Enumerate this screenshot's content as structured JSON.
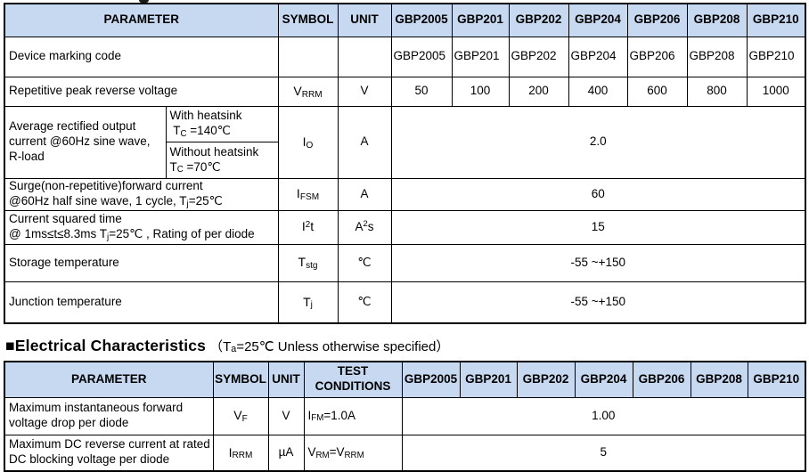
{
  "colors": {
    "header_bg": "#c6d9f1",
    "border": "#000000",
    "text": "#000000"
  },
  "ratings_table": {
    "header": {
      "parameter": "PARAMETER",
      "symbol": "SYMBOL",
      "unit": "UNIT",
      "models": [
        "GBP2005",
        "GBP201",
        "GBP202",
        "GBP204",
        "GBP206",
        "GBP208",
        "GBP210"
      ]
    },
    "device_marking": {
      "label": "Device marking code",
      "values": [
        "GBP2005",
        "GBP201",
        "GBP202",
        "GBP204",
        "GBP206",
        "GBP208",
        "GBP210"
      ]
    },
    "vrrm": {
      "label": "Repetitive peak reverse voltage",
      "symbol": [
        {
          "t": "V"
        },
        {
          "t": "RRM",
          "s": "sub"
        }
      ],
      "unit": "V",
      "values": [
        "50",
        "100",
        "200",
        "400",
        "600",
        "800",
        "1000"
      ]
    },
    "io": {
      "label": "Average rectified output current @60Hz sine wave, R-load",
      "cond_top": [
        {
          "t": "With heatsink\n "
        },
        {
          "t": "T"
        },
        {
          "t": "C",
          "s": "sub"
        },
        {
          "t": " =140℃"
        }
      ],
      "cond_bottom": [
        {
          "t": "Without heatsink\n"
        },
        {
          "t": "T"
        },
        {
          "t": "C",
          "s": "sub"
        },
        {
          "t": " =70℃"
        }
      ],
      "symbol": [
        {
          "t": "I"
        },
        {
          "t": "O",
          "s": "sub"
        }
      ],
      "unit": "A",
      "value": "2.0"
    },
    "ifsm": {
      "label": [
        {
          "t": "Surge(non-repetitive)forward current\n@60Hz half sine wave, 1 cycle, T"
        },
        {
          "t": "j",
          "s": "sub"
        },
        {
          "t": "=25℃"
        }
      ],
      "symbol": [
        {
          "t": "I"
        },
        {
          "t": "FSM",
          "s": "sub"
        }
      ],
      "unit": "A",
      "value": "60"
    },
    "i2t": {
      "label": [
        {
          "t": "Current squared time\n@ 1ms≤t≤8.3ms T"
        },
        {
          "t": "j",
          "s": "sub"
        },
        {
          "t": "=25℃ , Rating of per diode"
        }
      ],
      "symbol": [
        {
          "t": "I"
        },
        {
          "t": "2",
          "s": "sup"
        },
        {
          "t": "t"
        }
      ],
      "unit": [
        {
          "t": "A"
        },
        {
          "t": "2",
          "s": "sup"
        },
        {
          "t": "s"
        }
      ],
      "value": "15"
    },
    "tstg": {
      "label": "Storage temperature",
      "symbol": [
        {
          "t": "T"
        },
        {
          "t": "stg",
          "s": "sub"
        }
      ],
      "unit": "℃",
      "value": "-55 ~+150"
    },
    "tj": {
      "label": "Junction temperature",
      "symbol": [
        {
          "t": "T"
        },
        {
          "t": "j",
          "s": "sub"
        }
      ],
      "unit": "℃",
      "value": "-55 ~+150"
    }
  },
  "ec_heading": {
    "title": "■Electrical Characteristics",
    "condition": [
      {
        "t": "（T"
      },
      {
        "t": "a",
        "s": "sub"
      },
      {
        "t": "=25℃ Unless otherwise specified）"
      }
    ]
  },
  "ec_table": {
    "header": {
      "parameter": "PARAMETER",
      "symbol": "SYMBOL",
      "unit": "UNIT",
      "test_conditions": "TEST CONDITIONS",
      "models": [
        "GBP2005",
        "GBP201",
        "GBP202",
        "GBP204",
        "GBP206",
        "GBP208",
        "GBP210"
      ]
    },
    "vf": {
      "label": "Maximum instantaneous forward voltage drop per diode",
      "symbol": [
        {
          "t": "V"
        },
        {
          "t": "F",
          "s": "sub"
        }
      ],
      "unit": "V",
      "condition": [
        {
          "t": "I"
        },
        {
          "t": "FM",
          "s": "sub"
        },
        {
          "t": "=1.0A"
        }
      ],
      "value": "1.00"
    },
    "irrm": {
      "label": "Maximum DC reverse current at rated DC blocking voltage per diode",
      "symbol": [
        {
          "t": "I"
        },
        {
          "t": "RRM",
          "s": "sub"
        }
      ],
      "unit": "µA",
      "condition": [
        {
          "t": "V"
        },
        {
          "t": "RM",
          "s": "sub"
        },
        {
          "t": "=V"
        },
        {
          "t": "RRM",
          "s": "sub"
        }
      ],
      "value": "5"
    }
  }
}
